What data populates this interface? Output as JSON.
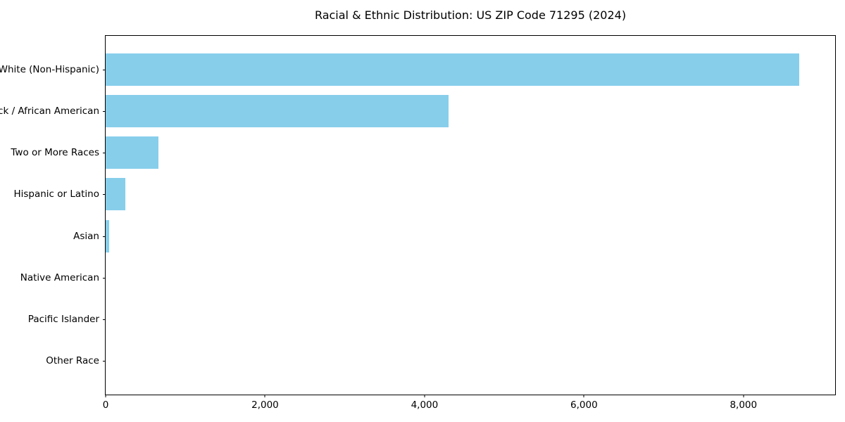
{
  "title": "Racial & Ethnic Distribution: US ZIP Code 71295 (2024)",
  "chart_data": {
    "type": "bar",
    "orientation": "horizontal",
    "title": "Racial & Ethnic Distribution: US ZIP Code 71295 (2024)",
    "categories": [
      "White (Non-Hispanic)",
      "Black / African American",
      "Two or More Races",
      "Hispanic or Latino",
      "Asian",
      "Native American",
      "Pacific Islander",
      "Other Race"
    ],
    "values": [
      8700,
      4300,
      665,
      245,
      45,
      0,
      0,
      0
    ],
    "xlabel": "",
    "ylabel": "",
    "xlim": [
      0,
      9150
    ],
    "x_ticks": [
      0,
      2000,
      4000,
      6000,
      8000
    ],
    "x_tick_labels": [
      "0",
      "2,000",
      "4,000",
      "6,000",
      "8,000"
    ],
    "bar_color": "#87CEEB",
    "frame_color": "#000000",
    "grid": false,
    "legend": null
  }
}
